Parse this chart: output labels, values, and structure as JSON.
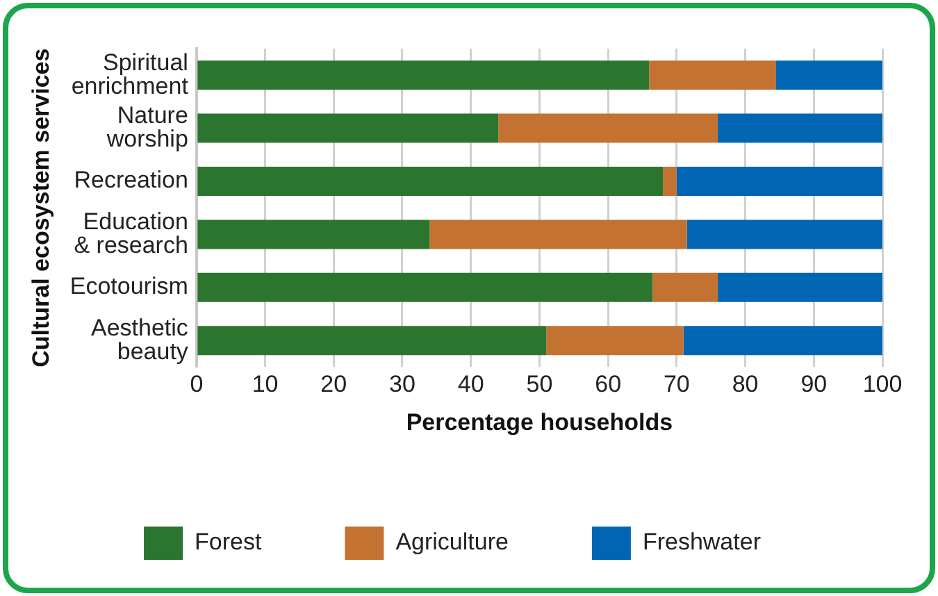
{
  "chart_data": {
    "type": "bar",
    "orientation": "horizontal",
    "stacked": true,
    "categories": [
      "Spiritual\nenrichment",
      "Nature\nworship",
      "Recreation",
      "Education\n& research",
      "Ecotourism",
      "Aesthetic\nbeauty"
    ],
    "series": [
      {
        "name": "Forest",
        "color": "#2c752e",
        "values": [
          66,
          44,
          68,
          34,
          66.5,
          51
        ]
      },
      {
        "name": "Agriculture",
        "color": "#c47231",
        "values": [
          18.5,
          32,
          2,
          37.5,
          9.5,
          20
        ]
      },
      {
        "name": "Freshwater",
        "color": "#0066b3",
        "values": [
          15.5,
          24,
          30,
          28.5,
          24,
          29
        ]
      }
    ],
    "xlabel": "Percentage households",
    "ylabel": "Cultural ecosystem services",
    "xlim": [
      0,
      100
    ],
    "xticks": [
      0,
      10,
      20,
      30,
      40,
      50,
      60,
      70,
      80,
      90,
      100
    ],
    "grid": "x",
    "legend": "bottom"
  }
}
